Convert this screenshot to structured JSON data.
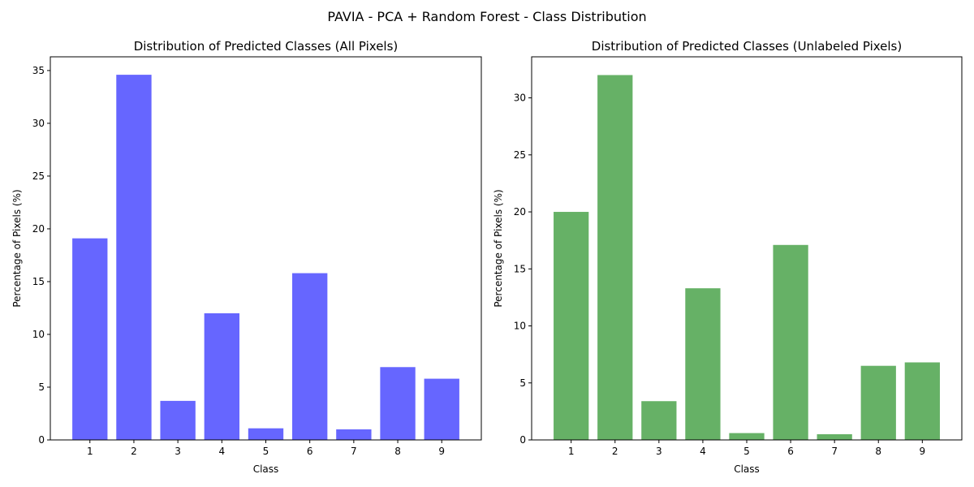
{
  "suptitle": "PAVIA - PCA + Random Forest - Class Distribution",
  "chart_data": [
    {
      "type": "bar",
      "title": "Distribution of Predicted Classes (All Pixels)",
      "xlabel": "Class",
      "ylabel": "Percentage of Pixels (%)",
      "categories": [
        "1",
        "2",
        "3",
        "4",
        "5",
        "6",
        "7",
        "8",
        "9"
      ],
      "values": [
        19.1,
        34.6,
        3.7,
        12.0,
        1.1,
        15.8,
        1.0,
        6.9,
        5.8
      ],
      "ylim": [
        0,
        36.3
      ],
      "yticks": [
        0,
        5,
        10,
        15,
        20,
        25,
        30,
        35
      ],
      "color": "#6666ff",
      "grid": false
    },
    {
      "type": "bar",
      "title": "Distribution of Predicted Classes (Unlabeled Pixels)",
      "xlabel": "Class",
      "ylabel": "Percentage of Pixels (%)",
      "categories": [
        "1",
        "2",
        "3",
        "4",
        "5",
        "6",
        "7",
        "8",
        "9"
      ],
      "values": [
        20.0,
        32.0,
        3.4,
        13.3,
        0.6,
        17.1,
        0.5,
        6.5,
        6.8
      ],
      "ylim": [
        0,
        33.6
      ],
      "yticks": [
        0,
        5,
        10,
        15,
        20,
        25,
        30
      ],
      "color": "#66b166",
      "grid": false
    }
  ]
}
